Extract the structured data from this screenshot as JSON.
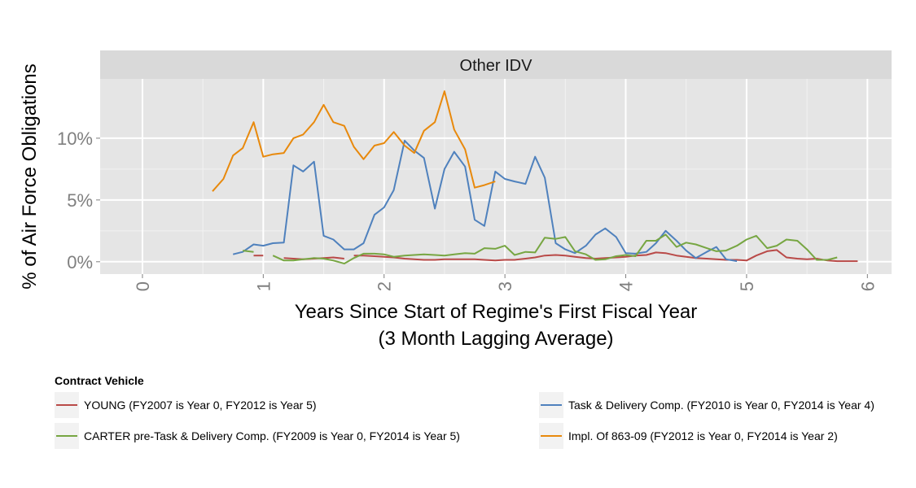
{
  "chart_data": {
    "type": "line",
    "facet_label": "Other IDV",
    "xlabel": "Years Since Start of Regime's First Fiscal Year",
    "xlabel_line2": "(3 Month Lagging Average)",
    "ylabel": "% of Air Force Obligations",
    "xlim": [
      -0.35,
      6.2
    ],
    "ylim": [
      -1.0,
      14.8
    ],
    "x_ticks": [
      0,
      1,
      2,
      3,
      4,
      5,
      6
    ],
    "x_tick_labels": [
      "0",
      "1",
      "2",
      "3",
      "4",
      "5",
      "6"
    ],
    "y_ticks": [
      0,
      5,
      10
    ],
    "y_tick_labels": [
      "0%",
      "5%",
      "10%"
    ],
    "grid": true,
    "legend": {
      "title": "Contract Vehicle",
      "placement": "bottom",
      "entries": [
        "YOUNG (FY2007 is Year 0, FY2012 is Year 5)",
        "Task & Delivery Comp. (FY2010 is Year 0, FY2014 is Year 4)",
        "CARTER pre-Task & Delivery Comp. (FY2009 is Year 0, FY2014 is Year 5)",
        "Impl. Of 863-09 (FY2012 is Year 0, FY2014 is Year 2)"
      ]
    },
    "series": [
      {
        "name": "YOUNG (FY2007 is Year 0, FY2012 is Year 5)",
        "color": "#b94a48",
        "segments": [
          {
            "x": [
              0.92,
              1.0
            ],
            "y": [
              0.5,
              0.5
            ]
          },
          {
            "x": [
              1.17,
              1.25,
              1.33,
              1.42,
              1.5,
              1.58,
              1.67
            ],
            "y": [
              0.3,
              0.25,
              0.2,
              0.25,
              0.3,
              0.35,
              0.25
            ]
          },
          {
            "x": [
              1.75,
              1.83,
              1.92,
              2.0,
              2.08,
              2.17,
              2.25,
              2.33,
              2.42,
              2.5,
              2.58,
              2.67,
              2.75,
              2.83,
              2.92,
              3.0,
              3.08,
              3.17,
              3.25,
              3.33,
              3.42,
              3.5,
              3.58,
              3.67,
              3.75,
              3.83,
              3.92,
              4.0,
              4.08,
              4.17,
              4.25,
              4.33,
              4.42,
              4.5,
              4.58,
              4.67,
              4.75,
              4.83,
              4.92,
              5.0,
              5.08,
              5.17,
              5.25,
              5.33,
              5.42,
              5.5,
              5.58,
              5.67,
              5.75,
              5.83,
              5.92
            ],
            "y": [
              0.5,
              0.5,
              0.45,
              0.4,
              0.35,
              0.25,
              0.2,
              0.15,
              0.15,
              0.2,
              0.2,
              0.2,
              0.2,
              0.15,
              0.1,
              0.15,
              0.15,
              0.25,
              0.35,
              0.5,
              0.55,
              0.5,
              0.4,
              0.3,
              0.25,
              0.3,
              0.35,
              0.4,
              0.5,
              0.55,
              0.75,
              0.7,
              0.5,
              0.4,
              0.3,
              0.25,
              0.2,
              0.15,
              0.15,
              0.1,
              0.5,
              0.85,
              0.95,
              0.35,
              0.25,
              0.2,
              0.25,
              0.1,
              0.05,
              0.05,
              0.05
            ]
          }
        ]
      },
      {
        "name": "Task & Delivery Comp. (FY2010 is Year 0, FY2014 is Year 4)",
        "color": "#4f81bd",
        "segments": [
          {
            "x": [
              0.75,
              0.83,
              0.92,
              1.0,
              1.08,
              1.17,
              1.25,
              1.33,
              1.42,
              1.5,
              1.58,
              1.67,
              1.75,
              1.83,
              1.92,
              2.0,
              2.08,
              2.17,
              2.25,
              2.33,
              2.42,
              2.5,
              2.58,
              2.67,
              2.75,
              2.83,
              2.92,
              3.0,
              3.08,
              3.17,
              3.25,
              3.33,
              3.42,
              3.5,
              3.58,
              3.67,
              3.75,
              3.83,
              3.92,
              4.0,
              4.08,
              4.17,
              4.25,
              4.33,
              4.42,
              4.5,
              4.58,
              4.67,
              4.75,
              4.83,
              4.92
            ],
            "y": [
              0.6,
              0.8,
              1.4,
              1.3,
              1.5,
              1.55,
              7.8,
              7.3,
              8.1,
              2.1,
              1.8,
              1.0,
              1.0,
              1.5,
              3.8,
              4.4,
              5.8,
              9.8,
              9.0,
              8.4,
              4.3,
              7.5,
              8.9,
              7.7,
              3.4,
              2.9,
              7.3,
              6.7,
              6.5,
              6.3,
              8.5,
              6.8,
              1.5,
              1.0,
              0.7,
              1.3,
              2.2,
              2.7,
              2.0,
              0.7,
              0.65,
              0.8,
              1.5,
              2.5,
              1.7,
              0.9,
              0.3,
              0.8,
              1.2,
              0.2,
              0.05
            ]
          }
        ]
      },
      {
        "name": "CARTER pre-Task & Delivery Comp. (FY2009 is Year 0, FY2014 is Year 5)",
        "color": "#77a642",
        "segments": [
          {
            "x": [
              0.83,
              0.92
            ],
            "y": [
              0.9,
              0.8
            ]
          },
          {
            "x": [
              1.08,
              1.17,
              1.25,
              1.33,
              1.42,
              1.5,
              1.58,
              1.67,
              1.75,
              1.83,
              1.92,
              2.0,
              2.08,
              2.17,
              2.25,
              2.33,
              2.42,
              2.5,
              2.58,
              2.67,
              2.75,
              2.83,
              2.92,
              3.0,
              3.08,
              3.17,
              3.25,
              3.33,
              3.42,
              3.5,
              3.58,
              3.67,
              3.75,
              3.83,
              3.92,
              4.0,
              4.08,
              4.17,
              4.25,
              4.33,
              4.42,
              4.5,
              4.58,
              4.67,
              4.75,
              4.83,
              4.92,
              5.0,
              5.08,
              5.17,
              5.25,
              5.33,
              5.42,
              5.5,
              5.58,
              5.67,
              5.75
            ],
            "y": [
              0.5,
              0.1,
              0.1,
              0.2,
              0.3,
              0.25,
              0.1,
              -0.15,
              0.3,
              0.65,
              0.65,
              0.6,
              0.4,
              0.5,
              0.55,
              0.6,
              0.55,
              0.5,
              0.6,
              0.7,
              0.65,
              1.1,
              1.05,
              1.3,
              0.55,
              0.8,
              0.75,
              1.95,
              1.85,
              2.0,
              0.85,
              0.6,
              0.15,
              0.2,
              0.45,
              0.55,
              0.45,
              1.7,
              1.7,
              2.2,
              1.2,
              1.55,
              1.4,
              1.1,
              0.85,
              0.9,
              1.3,
              1.8,
              2.1,
              1.1,
              1.3,
              1.8,
              1.7,
              1.0,
              0.15,
              0.15,
              0.35
            ]
          }
        ]
      },
      {
        "name": "Impl. Of 863-09 (FY2012 is Year 0, FY2014 is Year 2)",
        "color": "#e8890c",
        "segments": [
          {
            "x": [
              0.58,
              0.67,
              0.75,
              0.83,
              0.92,
              1.0,
              1.08,
              1.17,
              1.25,
              1.33,
              1.42,
              1.5,
              1.58,
              1.67,
              1.75,
              1.83,
              1.92,
              2.0,
              2.08,
              2.17,
              2.25,
              2.33,
              2.42,
              2.5,
              2.58,
              2.67,
              2.75,
              2.83,
              2.92
            ],
            "y": [
              5.7,
              6.7,
              8.6,
              9.2,
              11.3,
              8.5,
              8.7,
              8.8,
              10.0,
              10.3,
              11.3,
              12.7,
              11.3,
              11.0,
              9.3,
              8.3,
              9.4,
              9.6,
              10.5,
              9.4,
              8.8,
              10.6,
              11.3,
              13.8,
              10.7,
              9.1,
              6.0,
              6.2,
              6.5
            ]
          }
        ]
      }
    ]
  }
}
